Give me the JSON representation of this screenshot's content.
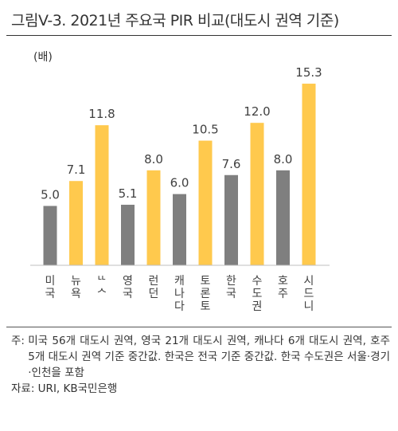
{
  "title": "그림V-3. 2021년 주요국 PIR 비교(대도시 권역 기준)",
  "chart_data": {
    "type": "bar",
    "ylabel": "(배)",
    "ylim": [
      0,
      17
    ],
    "grid": false,
    "categories": [
      "미국",
      "뉴욕",
      "LA",
      "영국",
      "런던",
      "캐나다",
      "토론토",
      "한국",
      "수도권",
      "호주",
      "시드니"
    ],
    "category_display": [
      "미국",
      "뉴욕",
      "ᄔᄉ",
      "영국",
      "런던",
      "캐나다",
      "토론토",
      "한국",
      "수도권",
      "호주",
      "시드니"
    ],
    "values": [
      5.0,
      7.1,
      11.8,
      5.1,
      8.0,
      6.0,
      10.5,
      7.6,
      12.0,
      8.0,
      15.3
    ],
    "value_labels": [
      "5.0",
      "7.1",
      "11.8",
      "5.1",
      "8.0",
      "6.0",
      "10.5",
      "7.6",
      "12.0",
      "8.0",
      "15.3"
    ],
    "bar_colors": [
      "#7f7f7f",
      "#ffc94d",
      "#ffc94d",
      "#7f7f7f",
      "#ffc94d",
      "#7f7f7f",
      "#ffc94d",
      "#7f7f7f",
      "#ffc94d",
      "#7f7f7f",
      "#ffc94d"
    ]
  },
  "notes": {
    "note_prefix": "주: ",
    "note_text": "미국 56개 대도시 권역, 영국 21개 대도시 권역, 캐나다 6개 대도시 권역, 호주 5개 대도시 권역 기준 중간값. 한국은 전국 기준 중간값. 한국 수도권은 서울·경기·인천을 포함",
    "source": "자료: URI, KB국민은행"
  }
}
